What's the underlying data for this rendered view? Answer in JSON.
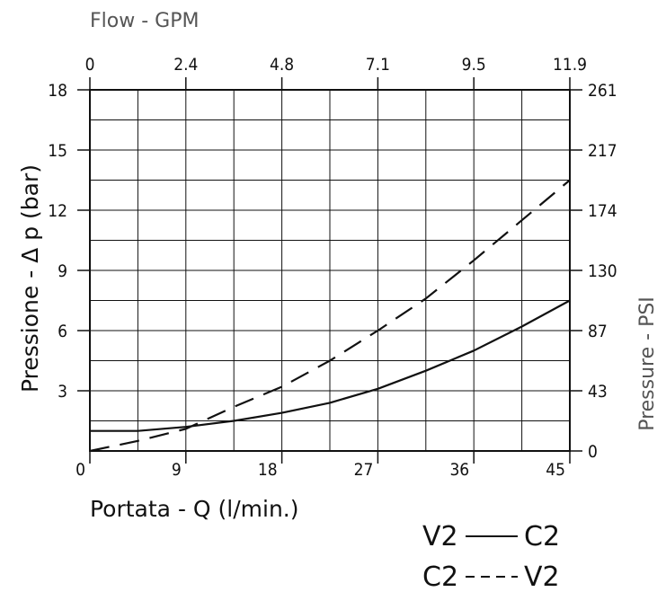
{
  "chart_data": {
    "type": "line",
    "title": "",
    "xlabel": "Portata - Q (l/min.)",
    "ylabel": "Pressione - Δ p (bar)",
    "x2label": "Flow - GPM",
    "y2label": "Pressure - PSI",
    "xlim": [
      0,
      45
    ],
    "ylim": [
      0,
      18
    ],
    "x_ticks": [
      "0",
      "9",
      "18",
      "27",
      "36",
      "45"
    ],
    "y_ticks": [
      "3",
      "6",
      "9",
      "12",
      "15",
      "18"
    ],
    "x2_ticks": [
      "0",
      "2.4",
      "4.8",
      "7.1",
      "9.5",
      "11.9"
    ],
    "y2_ticks": [
      "0",
      "43",
      "87",
      "130",
      "174",
      "217",
      "261"
    ],
    "grid": true,
    "series": [
      {
        "name": "V2 — C2",
        "style": "solid",
        "x": [
          0,
          4.5,
          9,
          13.5,
          18,
          22.5,
          27,
          31.5,
          36,
          40.5,
          45
        ],
        "values": [
          1.0,
          1.0,
          1.2,
          1.5,
          1.9,
          2.4,
          3.1,
          4.0,
          5.0,
          6.2,
          7.5
        ]
      },
      {
        "name": "C2 --- V2",
        "style": "dashed",
        "x": [
          0,
          4.5,
          9,
          13.5,
          18,
          22.5,
          27,
          31.5,
          36,
          40.5,
          45
        ],
        "values": [
          0.0,
          0.5,
          1.1,
          2.2,
          3.2,
          4.5,
          6.0,
          7.6,
          9.5,
          11.5,
          13.5
        ]
      }
    ],
    "legend": {
      "placement": "bottom-right",
      "entries": [
        {
          "left": "V2",
          "right": "C2",
          "style": "solid"
        },
        {
          "left": "C2",
          "right": "V2",
          "style": "dashed"
        }
      ]
    },
    "line_color": "#111111",
    "grid_color": "#111111"
  }
}
